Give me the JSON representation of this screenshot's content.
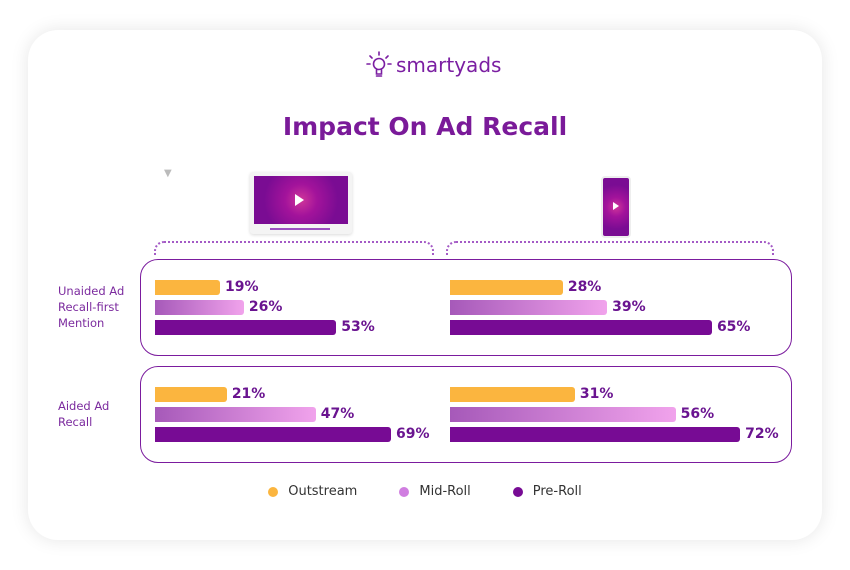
{
  "brand": "smartyads",
  "chart_data": {
    "type": "bar",
    "orientation": "horizontal",
    "title": "Impact On Ad Recall",
    "devices": [
      "desktop",
      "mobile"
    ],
    "categories": [
      "Unaided Ad Recall-first Mention",
      "Aided Ad Recall"
    ],
    "series": [
      {
        "name": "Outstream",
        "color": "#fbb53f",
        "desktop": [
          19,
          21
        ],
        "mobile": [
          28,
          31
        ]
      },
      {
        "name": "Mid-Roll",
        "color": "#d07ee0",
        "desktop": [
          26,
          47
        ],
        "mobile": [
          39,
          56
        ]
      },
      {
        "name": "Pre-Roll",
        "color": "#770b94",
        "desktop": [
          53,
          69
        ],
        "mobile": [
          65,
          72
        ]
      }
    ],
    "legend": "bottom"
  }
}
